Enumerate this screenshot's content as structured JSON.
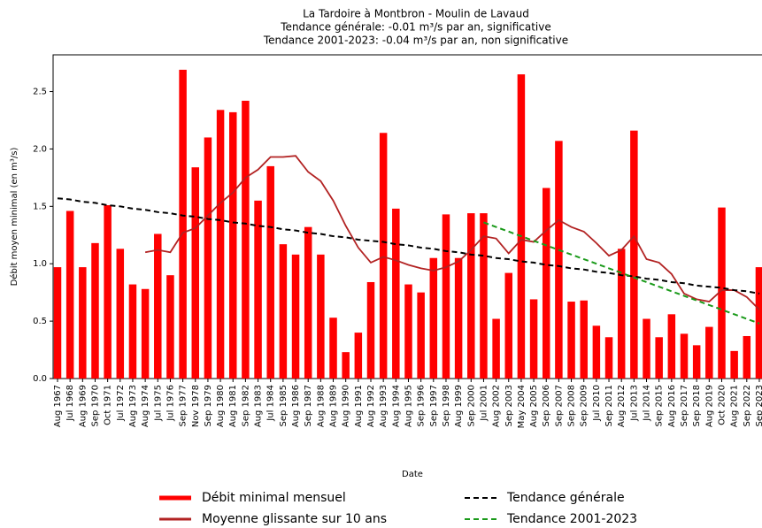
{
  "chart_data": {
    "type": "bar",
    "title": [
      "La Tardoire à Montbron - Moulin de Lavaud",
      "Tendance générale: -0.01 m³/s par an, significative",
      "Tendance 2001-2023: -0.04 m³/s par an, non significative"
    ],
    "xlabel": "Date",
    "ylabel": "Débit moyen minimal (en m³/s)",
    "categories": [
      "Aug 1967",
      "Jul 1968",
      "Aug 1969",
      "Sep 1970",
      "Oct 1971",
      "Jul 1972",
      "Aug 1973",
      "Aug 1974",
      "Jul 1975",
      "Jul 1976",
      "Sep 1977",
      "Nov 1978",
      "Sep 1979",
      "Aug 1980",
      "Aug 1981",
      "Sep 1982",
      "Aug 1983",
      "Jul 1984",
      "Sep 1985",
      "Aug 1986",
      "Sep 1987",
      "Aug 1988",
      "Aug 1989",
      "Aug 1990",
      "Aug 1991",
      "Aug 1992",
      "Aug 1993",
      "Aug 1994",
      "Aug 1995",
      "Sep 1996",
      "Sep 1997",
      "Sep 1998",
      "Aug 1999",
      "Sep 2000",
      "Jul 2001",
      "Aug 2002",
      "Sep 2003",
      "May 2004",
      "Aug 2005",
      "Sep 2006",
      "Sep 2007",
      "Sep 2008",
      "Sep 2009",
      "Jul 2010",
      "Sep 2011",
      "Aug 2012",
      "Jul 2013",
      "Jul 2014",
      "Sep 2015",
      "Aug 2016",
      "Sep 2017",
      "Sep 2018",
      "Aug 2019",
      "Oct 2020",
      "Aug 2021",
      "Sep 2022",
      "Sep 2023"
    ],
    "series": [
      {
        "name": "Débit minimal mensuel",
        "type": "bar",
        "color": "#ff0000",
        "values": [
          0.97,
          1.46,
          0.97,
          1.18,
          1.51,
          1.13,
          0.82,
          0.78,
          1.26,
          0.9,
          2.69,
          1.84,
          2.1,
          2.34,
          2.32,
          2.42,
          1.55,
          1.85,
          1.17,
          1.08,
          1.32,
          1.08,
          0.53,
          0.23,
          0.4,
          0.84,
          2.14,
          1.48,
          0.82,
          0.75,
          1.05,
          1.43,
          1.05,
          1.44,
          1.44,
          0.52,
          0.92,
          2.65,
          0.69,
          1.66,
          2.07,
          0.67,
          0.68,
          0.46,
          0.36,
          1.13,
          2.16,
          0.52,
          0.36,
          0.56,
          0.39,
          0.29,
          0.45,
          1.49,
          0.24,
          0.37,
          0.97
        ]
      },
      {
        "name": "Moyenne glissante sur 10 ans",
        "type": "line",
        "color": "#b22222",
        "dashed": false,
        "values": [
          null,
          null,
          null,
          null,
          null,
          null,
          null,
          1.1,
          1.12,
          1.1,
          1.27,
          1.31,
          1.42,
          1.53,
          1.62,
          1.75,
          1.82,
          1.93,
          1.93,
          1.94,
          1.8,
          1.72,
          1.55,
          1.33,
          1.14,
          1.01,
          1.06,
          1.03,
          0.99,
          0.96,
          0.94,
          0.97,
          1.02,
          1.12,
          1.24,
          1.22,
          1.09,
          1.21,
          1.19,
          1.29,
          1.38,
          1.32,
          1.28,
          1.18,
          1.07,
          1.12,
          1.24,
          1.04,
          1.01,
          0.91,
          0.74,
          0.69,
          0.67,
          0.77,
          0.77,
          0.71,
          0.6
        ]
      },
      {
        "name": "Tendance générale",
        "type": "line",
        "color": "#000000",
        "dashed": true,
        "values": [
          1.57,
          1.56,
          1.54,
          1.53,
          1.51,
          1.5,
          1.48,
          1.47,
          1.45,
          1.44,
          1.42,
          1.41,
          1.39,
          1.38,
          1.36,
          1.35,
          1.33,
          1.32,
          1.3,
          1.29,
          1.27,
          1.26,
          1.24,
          1.23,
          1.21,
          1.2,
          1.19,
          1.17,
          1.16,
          1.14,
          1.13,
          1.11,
          1.1,
          1.08,
          1.07,
          1.05,
          1.04,
          1.02,
          1.01,
          0.99,
          0.98,
          0.96,
          0.95,
          0.93,
          0.92,
          0.9,
          0.89,
          0.87,
          0.86,
          0.84,
          0.83,
          0.81,
          0.8,
          0.79,
          0.77,
          0.76,
          0.74
        ]
      },
      {
        "name": "Tendance 2001-2023",
        "type": "line",
        "color": "#1a9a1a",
        "dashed": true,
        "values": [
          null,
          null,
          null,
          null,
          null,
          null,
          null,
          null,
          null,
          null,
          null,
          null,
          null,
          null,
          null,
          null,
          null,
          null,
          null,
          null,
          null,
          null,
          null,
          null,
          null,
          null,
          null,
          null,
          null,
          null,
          null,
          null,
          null,
          null,
          1.36,
          1.32,
          1.28,
          1.24,
          1.2,
          1.16,
          1.12,
          1.08,
          1.04,
          1.0,
          0.96,
          0.92,
          0.88,
          0.84,
          0.8,
          0.76,
          0.72,
          0.68,
          0.64,
          0.6,
          0.56,
          0.52,
          0.48
        ]
      }
    ],
    "ylim": [
      0,
      2.82
    ],
    "yticks": [
      {
        "value": 0,
        "label": "0.0"
      },
      0.5,
      {
        "value": 1,
        "label": "1.0"
      },
      1.5,
      {
        "value": 2,
        "label": "2.0"
      },
      2.5
    ],
    "grid": false,
    "legend": "bottom"
  }
}
